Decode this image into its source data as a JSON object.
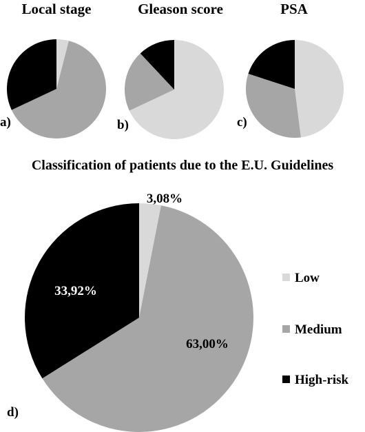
{
  "chart_data": [
    {
      "type": "pie",
      "title": "Local stage",
      "panel_label": "a)",
      "categories": [
        "Low",
        "Medium",
        "High-risk"
      ],
      "values": [
        4,
        64,
        32
      ],
      "colors": [
        "#d9d9d9",
        "#a6a6a6",
        "#000000"
      ]
    },
    {
      "type": "pie",
      "title": "Gleason score",
      "panel_label": "b)",
      "categories": [
        "Low",
        "Medium",
        "High-risk"
      ],
      "values": [
        68,
        20,
        12
      ],
      "colors": [
        "#d9d9d9",
        "#a6a6a6",
        "#000000"
      ]
    },
    {
      "type": "pie",
      "title": "PSA",
      "panel_label": "c)",
      "categories": [
        "Low",
        "Medium",
        "High-risk"
      ],
      "values": [
        48,
        32,
        20
      ],
      "colors": [
        "#d9d9d9",
        "#a6a6a6",
        "#000000"
      ]
    },
    {
      "type": "pie",
      "title": "Classification of patients due to the E.U. Guidelines",
      "panel_label": "d)",
      "categories": [
        "Low",
        "Medium",
        "High-risk"
      ],
      "values": [
        3.08,
        63.0,
        33.92
      ],
      "data_labels": [
        "3,08%",
        "63,00%",
        "33,92%"
      ],
      "colors": [
        "#d9d9d9",
        "#a6a6a6",
        "#000000"
      ],
      "legend": "right"
    }
  ]
}
